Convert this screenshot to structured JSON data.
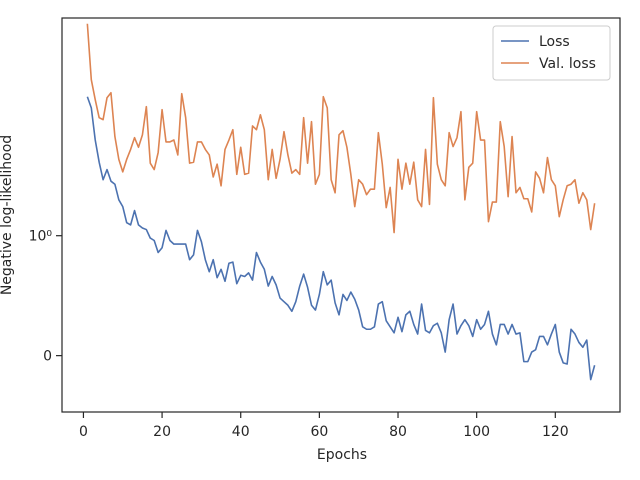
{
  "chart_data": {
    "type": "line",
    "xlabel": "Epochs",
    "ylabel": "Negative log-likelihood",
    "yscale": "symlog",
    "linthresh": 1,
    "xlim": [
      -5.45,
      136.45
    ],
    "xticks": [
      0,
      20,
      40,
      60,
      80,
      100,
      120
    ],
    "ylim": [
      -0.47,
      104
    ],
    "yticks": [
      0,
      {
        "value": 1,
        "label": "10⁰"
      }
    ],
    "legend": "upper right",
    "x": [
      1,
      2,
      3,
      4,
      5,
      6,
      7,
      8,
      9,
      10,
      11,
      12,
      13,
      14,
      15,
      16,
      17,
      18,
      19,
      20,
      21,
      22,
      23,
      24,
      25,
      26,
      27,
      28,
      29,
      30,
      31,
      32,
      33,
      34,
      35,
      36,
      37,
      38,
      39,
      40,
      41,
      42,
      43,
      44,
      45,
      46,
      47,
      48,
      49,
      50,
      51,
      52,
      53,
      54,
      55,
      56,
      57,
      58,
      59,
      60,
      61,
      62,
      63,
      64,
      65,
      66,
      67,
      68,
      69,
      70,
      71,
      72,
      73,
      74,
      75,
      76,
      77,
      78,
      79,
      80,
      81,
      82,
      83,
      84,
      85,
      86,
      87,
      88,
      89,
      90,
      91,
      92,
      93,
      94,
      95,
      96,
      97,
      98,
      99,
      100,
      101,
      102,
      103,
      104,
      105,
      106,
      107,
      108,
      109,
      110,
      111,
      112,
      113,
      114,
      115,
      116,
      117,
      118,
      119,
      120,
      121,
      122,
      123,
      124,
      125,
      126,
      127,
      128,
      129,
      130
    ],
    "series": [
      {
        "name": "Loss",
        "color": "#4c72b0",
        "values": [
          19.4,
          15.3,
          7.7,
          4.8,
          3.3,
          4.1,
          3.2,
          3.0,
          2.15,
          1.86,
          1.32,
          1.26,
          1.71,
          1.26,
          1.18,
          1.14,
          0.98,
          0.96,
          0.86,
          0.9,
          1.12,
          0.96,
          0.93,
          0.93,
          0.93,
          0.93,
          0.8,
          0.84,
          1.12,
          0.95,
          0.8,
          0.7,
          0.8,
          0.65,
          0.72,
          0.62,
          0.77,
          0.78,
          0.6,
          0.67,
          0.66,
          0.69,
          0.63,
          0.86,
          0.78,
          0.72,
          0.58,
          0.66,
          0.59,
          0.48,
          0.45,
          0.42,
          0.37,
          0.45,
          0.58,
          0.68,
          0.57,
          0.42,
          0.38,
          0.51,
          0.7,
          0.59,
          0.63,
          0.44,
          0.34,
          0.51,
          0.46,
          0.53,
          0.47,
          0.38,
          0.24,
          0.22,
          0.22,
          0.24,
          0.43,
          0.45,
          0.29,
          0.24,
          0.19,
          0.32,
          0.2,
          0.34,
          0.37,
          0.26,
          0.18,
          0.43,
          0.21,
          0.19,
          0.25,
          0.27,
          0.19,
          0.03,
          0.3,
          0.43,
          0.18,
          0.25,
          0.3,
          0.25,
          0.16,
          0.3,
          0.22,
          0.26,
          0.37,
          0.18,
          0.09,
          0.26,
          0.26,
          0.18,
          0.26,
          0.18,
          0.19,
          -0.05,
          -0.05,
          0.03,
          0.05,
          0.16,
          0.16,
          0.09,
          0.18,
          0.26,
          0.03,
          -0.06,
          -0.07,
          0.22,
          0.18,
          0.11,
          0.07,
          0.13,
          -0.2,
          -0.08
        ]
      },
      {
        "name": "Val. loss",
        "color": "#dd8452",
        "values": [
          92,
          27.9,
          18.2,
          12.4,
          11.9,
          19,
          21.1,
          8.3,
          5.1,
          3.9,
          5.1,
          6.3,
          8.1,
          6.6,
          8.6,
          15.7,
          4.7,
          4.1,
          5.9,
          14.7,
          7.4,
          7.4,
          7.7,
          5.6,
          20.7,
          12.4,
          4.7,
          4.8,
          7.4,
          7.4,
          6.3,
          5.6,
          3.5,
          4.6,
          2.9,
          6.3,
          7.7,
          9.6,
          3.7,
          6.6,
          3.7,
          3.8,
          10.4,
          9.6,
          13.2,
          9.6,
          3.3,
          6.3,
          3.4,
          5.1,
          9.2,
          5.6,
          3.8,
          4.1,
          3.7,
          12.4,
          4.7,
          11.4,
          3.0,
          3.7,
          19.4,
          15.3,
          3.3,
          2.5,
          8.6,
          9.4,
          6.6,
          3.7,
          1.86,
          3.3,
          3.0,
          2.4,
          2.7,
          2.7,
          9.0,
          4.6,
          1.82,
          2.8,
          1.07,
          5.1,
          2.7,
          4.7,
          3.0,
          4.8,
          2.15,
          1.86,
          6.3,
          1.95,
          19,
          4.6,
          3.3,
          2.9,
          9.0,
          6.7,
          8.1,
          14.1,
          2.15,
          4.3,
          4.7,
          14.1,
          7.7,
          7.7,
          1.35,
          2.05,
          2.05,
          11.4,
          6.7,
          2.3,
          8.3,
          2.5,
          2.8,
          2.2,
          2.2,
          1.66,
          3.9,
          3.4,
          2.5,
          5.3,
          3.3,
          2.9,
          1.5,
          2.15,
          2.9,
          3.0,
          3.3,
          2.0,
          2.5,
          2.15,
          1.14,
          2.0
        ]
      }
    ]
  }
}
